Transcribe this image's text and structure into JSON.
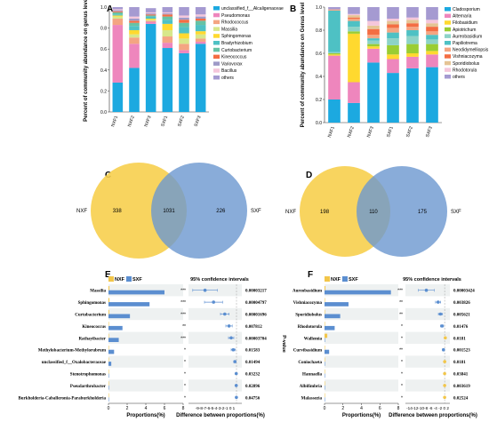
{
  "panels": {
    "A": {
      "label": "A",
      "chart_data": {
        "type": "bar",
        "stacked": true,
        "normalized": true,
        "categories": [
          "NXF1",
          "NXF2",
          "NXF3",
          "SXF1",
          "SXF2",
          "SXF3"
        ],
        "ylabel": "Percent of community abundance on genus level",
        "ylim": [
          0,
          1
        ],
        "yticks": [
          "0.0",
          "0.2",
          "0.4",
          "0.6",
          "0.8",
          "1.0"
        ],
        "legend_position": "right",
        "series": [
          {
            "name": "unclassified_f__Alcaligenaceae",
            "color": "#1CA9E0",
            "values": [
              0.28,
              0.42,
              0.84,
              0.61,
              0.56,
              0.65
            ]
          },
          {
            "name": "Pseudomonas",
            "color": "#EE86BD",
            "values": [
              0.55,
              0.23,
              0.02,
              0.05,
              0.03,
              0.02
            ]
          },
          {
            "name": "Rhodococcus",
            "color": "#F4A582",
            "values": [
              0.06,
              0.06,
              0.01,
              0.06,
              0.06,
              0.03
            ]
          },
          {
            "name": "Massilia",
            "color": "#D8E78A",
            "values": [
              0.02,
              0.03,
              0.01,
              0.06,
              0.05,
              0.04
            ]
          },
          {
            "name": "Sphingomonas",
            "color": "#FFD92F",
            "values": [
              0.01,
              0.04,
              0.01,
              0.06,
              0.05,
              0.03
            ]
          },
          {
            "name": "Bradyrhizobium",
            "color": "#4EC1C4",
            "values": [
              0.01,
              0.04,
              0.02,
              0.04,
              0.06,
              0.06
            ]
          },
          {
            "name": "Curtobacterium",
            "color": "#66C2A5",
            "values": [
              0.02,
              0.03,
              0.01,
              0.03,
              0.04,
              0.04
            ]
          },
          {
            "name": "Kineococcus",
            "color": "#F46D43",
            "values": [
              0.01,
              0.02,
              0.01,
              0.02,
              0.03,
              0.02
            ]
          },
          {
            "name": "Variovorax",
            "color": "#9E9AC8",
            "values": [
              0.01,
              0.02,
              0.01,
              0.01,
              0.02,
              0.02
            ]
          },
          {
            "name": "Bacillus",
            "color": "#F5C6DB",
            "values": [
              0.01,
              0.02,
              0.01,
              0.01,
              0.02,
              0.02
            ]
          },
          {
            "name": "others",
            "color": "#A59AD1",
            "values": [
              0.02,
              0.09,
              0.04,
              0.05,
              0.08,
              0.07
            ]
          }
        ]
      }
    },
    "B": {
      "label": "B",
      "chart_data": {
        "type": "bar",
        "stacked": true,
        "normalized": true,
        "categories": [
          "NXF1",
          "NXF2",
          "NXF3",
          "SXF1",
          "SXF2",
          "SXF3"
        ],
        "ylabel": "Percent of community abundance on Genus level",
        "ylim": [
          0,
          1
        ],
        "yticks": [
          "0.0",
          "0.2",
          "0.4",
          "0.6",
          "0.8",
          "1.0"
        ],
        "legend_position": "right",
        "series": [
          {
            "name": "Cladosporium",
            "color": "#1CA9E0",
            "values": [
              0.2,
              0.17,
              0.52,
              0.43,
              0.47,
              0.48
            ]
          },
          {
            "name": "Alternaria",
            "color": "#EE86BD",
            "values": [
              0.38,
              0.18,
              0.12,
              0.12,
              0.1,
              0.11
            ]
          },
          {
            "name": "Filobasidium",
            "color": "#FFD92F",
            "values": [
              0.01,
              0.42,
              0.02,
              0.04,
              0.03,
              0.03
            ]
          },
          {
            "name": "Apiotrichum",
            "color": "#9ACD32",
            "values": [
              0.01,
              0.02,
              0.02,
              0.08,
              0.08,
              0.06
            ]
          },
          {
            "name": "Aureobasidium",
            "color": "#8DD3C7",
            "values": [
              0.01,
              0.04,
              0.03,
              0.06,
              0.07,
              0.04
            ]
          },
          {
            "name": "Papiliotrema",
            "color": "#4EC1C4",
            "values": [
              0.36,
              0.05,
              0.02,
              0.05,
              0.05,
              0.04
            ]
          },
          {
            "name": "Neodidymelliopsis",
            "color": "#F4A582",
            "values": [
              0.01,
              0.02,
              0.03,
              0.04,
              0.03,
              0.03
            ]
          },
          {
            "name": "Vishniacozyma",
            "color": "#F46D43",
            "values": [
              0.0,
              0.01,
              0.05,
              0.03,
              0.03,
              0.04
            ]
          },
          {
            "name": "Sporidiobolus",
            "color": "#E5C494",
            "values": [
              0.0,
              0.02,
              0.03,
              0.03,
              0.03,
              0.03
            ]
          },
          {
            "name": "Rhodotorula",
            "color": "#F5C6DB",
            "values": [
              0.0,
              0.01,
              0.04,
              0.02,
              0.02,
              0.03
            ]
          },
          {
            "name": "others",
            "color": "#A59AD1",
            "values": [
              0.02,
              0.06,
              0.12,
              0.1,
              0.09,
              0.11
            ]
          }
        ]
      }
    },
    "C": {
      "label": "C",
      "chart_data": {
        "type": "venn",
        "sets": [
          {
            "name": "NXF",
            "unique": 338,
            "color": "#F7CF4E"
          },
          {
            "name": "SXF",
            "unique": 226,
            "color": "#6C97CF"
          }
        ],
        "shared": 1031
      }
    },
    "D": {
      "label": "D",
      "chart_data": {
        "type": "venn",
        "sets": [
          {
            "name": "NXF",
            "unique": 198,
            "color": "#F7CF4E"
          },
          {
            "name": "SXF",
            "unique": 175,
            "color": "#6C97CF"
          }
        ],
        "shared": 110
      }
    },
    "E": {
      "label": "E",
      "legend": [
        {
          "name": "NXF",
          "color": "#F2C64A"
        },
        {
          "name": "SXF",
          "color": "#5B8ED0"
        }
      ],
      "ci_title": "95% confidence intervals",
      "pvalue_label": "P-value",
      "xlabel_left": "Proportions(%)",
      "xlabel_right": "Difference between proportions(%)",
      "left_ticks": [
        "0",
        "2",
        "4",
        "6",
        "8"
      ],
      "right_ticks_text": "-9-8-7-6-5-4-3-2-1 0 1",
      "chart_data": {
        "type": "bar",
        "orientation": "horizontal",
        "categories": [
          "Massilia",
          "Sphingomonas",
          "Curtobacterium",
          "Kineococcus",
          "Rathayibacter",
          "Methylobacterium-Methylorubrum",
          "unclassified_f__Oxalobacteraceae",
          "Stenotrophomonas",
          "Pseudarthrobacter",
          "Burkholderia-Caballeronia-Paraburkholderia"
        ],
        "xlim": [
          0,
          8
        ],
        "series": [
          {
            "name": "NXF",
            "values": [
              0.1,
              0.1,
              0.08,
              0.05,
              0.05,
              0.03,
              0.02,
              0.02,
              0.02,
              0.01
            ]
          },
          {
            "name": "SXF",
            "values": [
              6.0,
              4.4,
              2.3,
              1.5,
              1.1,
              0.6,
              0.3,
              0.05,
              0.05,
              0.03
            ]
          }
        ],
        "difference": {
          "xlim": [
            -9,
            1
          ],
          "values": [
            -5.9,
            -4.3,
            -2.2,
            -1.4,
            -1.0,
            -0.6,
            -0.3,
            -0.05,
            -0.05,
            -0.02
          ],
          "ci_low": [
            -8.2,
            -6.0,
            -3.0,
            -2.0,
            -1.5,
            -1.0,
            -0.5,
            -0.1,
            -0.1,
            -0.05
          ],
          "ci_high": [
            -3.6,
            -2.6,
            -1.4,
            -0.8,
            -0.5,
            -0.2,
            -0.1,
            0.0,
            0.0,
            0.0
          ]
        },
        "stars": [
          "***",
          "***",
          "***",
          "**",
          "***",
          "*",
          "*",
          "*",
          "*",
          "*"
        ],
        "pvalues": [
          "0.00003217",
          "0.00004797",
          "0.00001696",
          "0.007812",
          "0.00003704",
          "0.01583",
          "0.01494",
          "0.03232",
          "0.02896",
          "0.04756"
        ]
      }
    },
    "F": {
      "label": "F",
      "legend": [
        {
          "name": "NXF",
          "color": "#F2C64A"
        },
        {
          "name": "SXF",
          "color": "#5B8ED0"
        }
      ],
      "ci_title": "95% confidence intervals",
      "pvalue_label": "P-value",
      "xlabel_left": "Proportions(%)",
      "xlabel_right": "Difference between proportions(%)",
      "left_ticks": [
        "0",
        "2",
        "4",
        "6",
        "8"
      ],
      "right_ticks_text": "-14-12-10-8 -6 -4 -2 0 2",
      "chart_data": {
        "type": "bar",
        "orientation": "horizontal",
        "categories": [
          "Aureobasidium",
          "Vishniacozyma",
          "Sporidiobolus",
          "Rhodotorula",
          "Wallemia",
          "Curvibasidium",
          "Coniochaeta",
          "Hannaella",
          "Albifimbria",
          "Malassezia"
        ],
        "xlim": [
          0,
          8
        ],
        "series": [
          {
            "name": "NXF",
            "values": [
              0.1,
              0.05,
              0.05,
              0.05,
              0.3,
              0.03,
              0.05,
              0.02,
              0.02,
              0.02
            ]
          },
          {
            "name": "SXF",
            "values": [
              7.2,
              2.6,
              1.7,
              1.1,
              0.05,
              0.5,
              0.03,
              0.02,
              0.02,
              0.01
            ]
          }
        ],
        "difference": {
          "xlim": [
            -15,
            2
          ],
          "values": [
            -7.0,
            -2.5,
            -1.6,
            -1.0,
            0.25,
            -0.45,
            0.02,
            0.0,
            0.0,
            0.0
          ],
          "ci_low": [
            -10.0,
            -3.5,
            -2.4,
            -1.6,
            0.05,
            -0.8,
            0.0,
            -0.05,
            -0.05,
            -0.05
          ],
          "ci_high": [
            -4.0,
            -1.5,
            -0.8,
            -0.4,
            0.45,
            -0.1,
            0.05,
            0.05,
            0.05,
            0.05
          ]
        },
        "stars": [
          "***",
          "**",
          "**",
          "*",
          "*",
          "**",
          "*",
          "*",
          "*",
          "*"
        ],
        "pvalues": [
          "0.00003424",
          "0.003826",
          "0.005621",
          "0.01476",
          "0.0181",
          "0.001523",
          "0.0181",
          "0.03841",
          "0.003619",
          "0.02524"
        ]
      }
    }
  }
}
